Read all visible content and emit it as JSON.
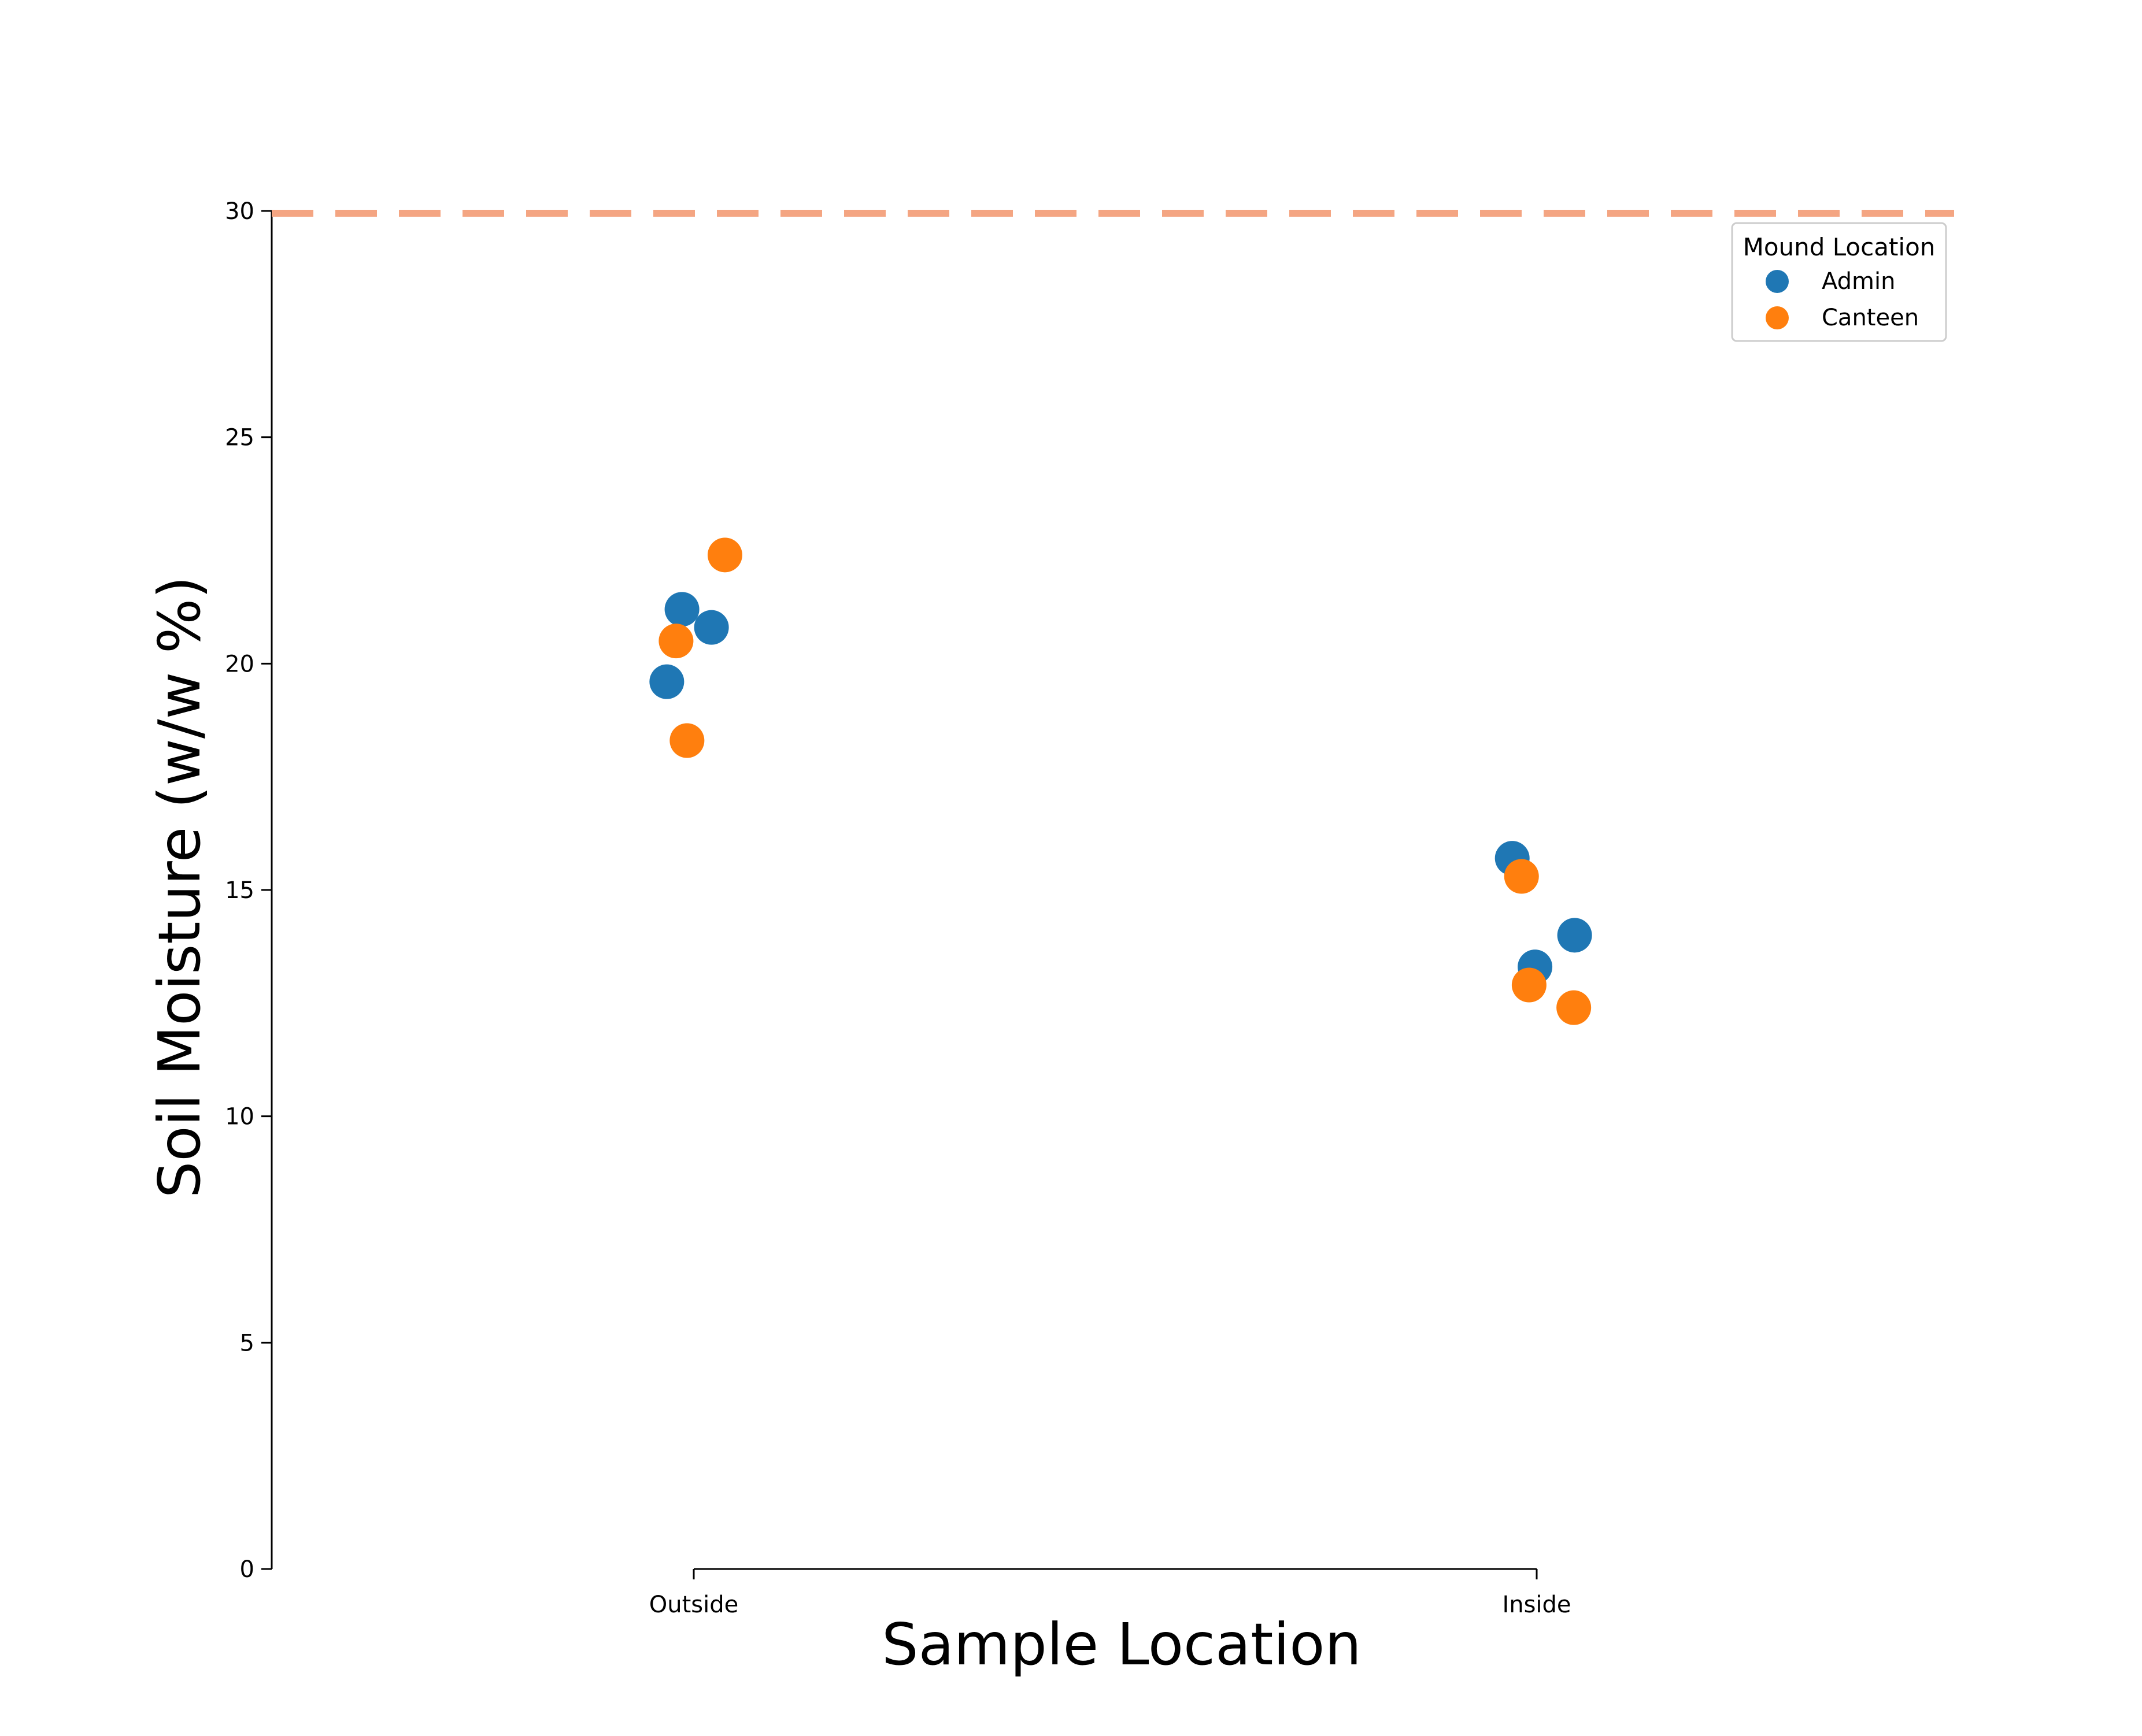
{
  "chart_data": {
    "type": "scatter",
    "title": "",
    "xlabel": "Sample Location",
    "ylabel": "Soil Moisture (w/w %)",
    "categories": [
      "Outside",
      "Inside"
    ],
    "ylim": [
      0,
      30
    ],
    "yticks": [
      0,
      5,
      10,
      15,
      20,
      25,
      30
    ],
    "ytick_labels": [
      "0",
      "5",
      "10",
      "15",
      "20",
      "25",
      "30"
    ],
    "grid": false,
    "reference_line": {
      "y": 30,
      "style": "dashed",
      "color": "#f4a582"
    },
    "legend": {
      "title": "Mound Location",
      "placement": "top-right"
    },
    "series": [
      {
        "name": "Admin",
        "color": "#1f77b4",
        "points": [
          {
            "category": "Outside",
            "jitter": -0.032,
            "y": 19.6
          },
          {
            "category": "Outside",
            "jitter": -0.014,
            "y": 21.2
          },
          {
            "category": "Outside",
            "jitter": 0.021,
            "y": 20.8
          },
          {
            "category": "Inside",
            "jitter": -0.029,
            "y": 15.7
          },
          {
            "category": "Inside",
            "jitter": -0.002,
            "y": 13.3
          },
          {
            "category": "Inside",
            "jitter": 0.045,
            "y": 14.0
          }
        ]
      },
      {
        "name": "Canteen",
        "color": "#ff7f0e",
        "points": [
          {
            "category": "Outside",
            "jitter": -0.021,
            "y": 20.5
          },
          {
            "category": "Outside",
            "jitter": -0.008,
            "y": 18.3
          },
          {
            "category": "Outside",
            "jitter": 0.037,
            "y": 22.4
          },
          {
            "category": "Inside",
            "jitter": -0.018,
            "y": 15.3
          },
          {
            "category": "Inside",
            "jitter": -0.009,
            "y": 12.9
          },
          {
            "category": "Inside",
            "jitter": 0.044,
            "y": 12.4
          }
        ]
      }
    ]
  }
}
